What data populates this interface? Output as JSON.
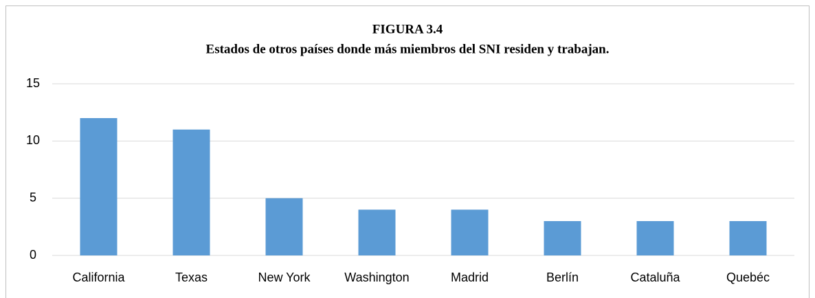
{
  "chart_data": {
    "type": "bar",
    "title": "FIGURA 3.4",
    "subtitle": "Estados  de otros países donde más miembros del SNI residen y trabajan.",
    "categories": [
      "California",
      "Texas",
      "New York",
      "Washington",
      "Madrid",
      "Berlín",
      "Cataluña",
      "Quebéc"
    ],
    "values": [
      12,
      11,
      5,
      4,
      4,
      3,
      3,
      3
    ],
    "color": "#5b9bd5",
    "ylim": [
      0,
      15
    ],
    "yticks": [
      0,
      5,
      10,
      15
    ],
    "grid": true
  }
}
